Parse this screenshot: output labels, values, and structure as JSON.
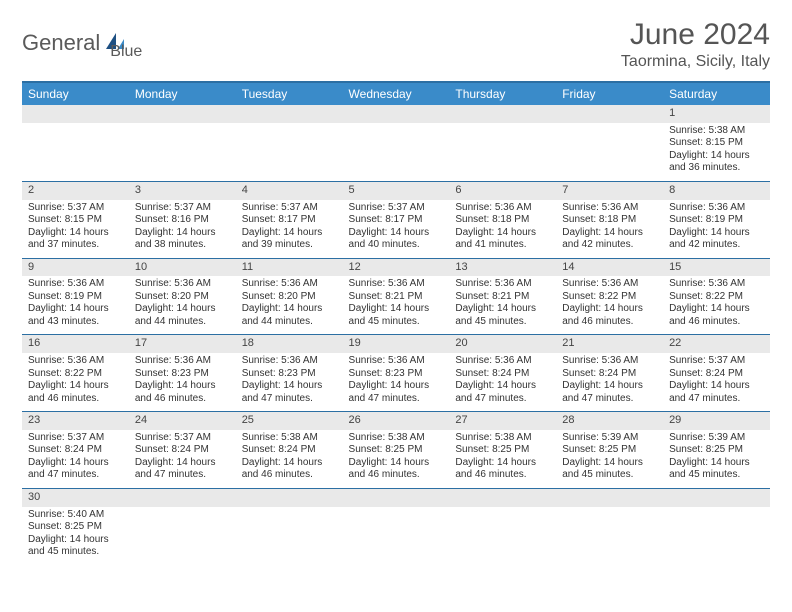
{
  "header": {
    "logo_text_1": "General",
    "logo_text_2": "Blue",
    "title": "June 2024",
    "subtitle": "Taormina, Sicily, Italy"
  },
  "calendar": {
    "header_bg": "#3a8bc9",
    "header_fg": "#ffffff",
    "border_color": "#2c6fa3",
    "daynum_bg": "#e9e9e9",
    "font_size_header": 12,
    "font_size_daynum": 11,
    "font_size_detail": 10,
    "days": [
      "Sunday",
      "Monday",
      "Tuesday",
      "Wednesday",
      "Thursday",
      "Friday",
      "Saturday"
    ],
    "weeks": [
      [
        null,
        null,
        null,
        null,
        null,
        null,
        {
          "n": "1",
          "sr": "Sunrise: 5:38 AM",
          "ss": "Sunset: 8:15 PM",
          "d1": "Daylight: 14 hours",
          "d2": "and 36 minutes."
        }
      ],
      [
        {
          "n": "2",
          "sr": "Sunrise: 5:37 AM",
          "ss": "Sunset: 8:15 PM",
          "d1": "Daylight: 14 hours",
          "d2": "and 37 minutes."
        },
        {
          "n": "3",
          "sr": "Sunrise: 5:37 AM",
          "ss": "Sunset: 8:16 PM",
          "d1": "Daylight: 14 hours",
          "d2": "and 38 minutes."
        },
        {
          "n": "4",
          "sr": "Sunrise: 5:37 AM",
          "ss": "Sunset: 8:17 PM",
          "d1": "Daylight: 14 hours",
          "d2": "and 39 minutes."
        },
        {
          "n": "5",
          "sr": "Sunrise: 5:37 AM",
          "ss": "Sunset: 8:17 PM",
          "d1": "Daylight: 14 hours",
          "d2": "and 40 minutes."
        },
        {
          "n": "6",
          "sr": "Sunrise: 5:36 AM",
          "ss": "Sunset: 8:18 PM",
          "d1": "Daylight: 14 hours",
          "d2": "and 41 minutes."
        },
        {
          "n": "7",
          "sr": "Sunrise: 5:36 AM",
          "ss": "Sunset: 8:18 PM",
          "d1": "Daylight: 14 hours",
          "d2": "and 42 minutes."
        },
        {
          "n": "8",
          "sr": "Sunrise: 5:36 AM",
          "ss": "Sunset: 8:19 PM",
          "d1": "Daylight: 14 hours",
          "d2": "and 42 minutes."
        }
      ],
      [
        {
          "n": "9",
          "sr": "Sunrise: 5:36 AM",
          "ss": "Sunset: 8:19 PM",
          "d1": "Daylight: 14 hours",
          "d2": "and 43 minutes."
        },
        {
          "n": "10",
          "sr": "Sunrise: 5:36 AM",
          "ss": "Sunset: 8:20 PM",
          "d1": "Daylight: 14 hours",
          "d2": "and 44 minutes."
        },
        {
          "n": "11",
          "sr": "Sunrise: 5:36 AM",
          "ss": "Sunset: 8:20 PM",
          "d1": "Daylight: 14 hours",
          "d2": "and 44 minutes."
        },
        {
          "n": "12",
          "sr": "Sunrise: 5:36 AM",
          "ss": "Sunset: 8:21 PM",
          "d1": "Daylight: 14 hours",
          "d2": "and 45 minutes."
        },
        {
          "n": "13",
          "sr": "Sunrise: 5:36 AM",
          "ss": "Sunset: 8:21 PM",
          "d1": "Daylight: 14 hours",
          "d2": "and 45 minutes."
        },
        {
          "n": "14",
          "sr": "Sunrise: 5:36 AM",
          "ss": "Sunset: 8:22 PM",
          "d1": "Daylight: 14 hours",
          "d2": "and 46 minutes."
        },
        {
          "n": "15",
          "sr": "Sunrise: 5:36 AM",
          "ss": "Sunset: 8:22 PM",
          "d1": "Daylight: 14 hours",
          "d2": "and 46 minutes."
        }
      ],
      [
        {
          "n": "16",
          "sr": "Sunrise: 5:36 AM",
          "ss": "Sunset: 8:22 PM",
          "d1": "Daylight: 14 hours",
          "d2": "and 46 minutes."
        },
        {
          "n": "17",
          "sr": "Sunrise: 5:36 AM",
          "ss": "Sunset: 8:23 PM",
          "d1": "Daylight: 14 hours",
          "d2": "and 46 minutes."
        },
        {
          "n": "18",
          "sr": "Sunrise: 5:36 AM",
          "ss": "Sunset: 8:23 PM",
          "d1": "Daylight: 14 hours",
          "d2": "and 47 minutes."
        },
        {
          "n": "19",
          "sr": "Sunrise: 5:36 AM",
          "ss": "Sunset: 8:23 PM",
          "d1": "Daylight: 14 hours",
          "d2": "and 47 minutes."
        },
        {
          "n": "20",
          "sr": "Sunrise: 5:36 AM",
          "ss": "Sunset: 8:24 PM",
          "d1": "Daylight: 14 hours",
          "d2": "and 47 minutes."
        },
        {
          "n": "21",
          "sr": "Sunrise: 5:36 AM",
          "ss": "Sunset: 8:24 PM",
          "d1": "Daylight: 14 hours",
          "d2": "and 47 minutes."
        },
        {
          "n": "22",
          "sr": "Sunrise: 5:37 AM",
          "ss": "Sunset: 8:24 PM",
          "d1": "Daylight: 14 hours",
          "d2": "and 47 minutes."
        }
      ],
      [
        {
          "n": "23",
          "sr": "Sunrise: 5:37 AM",
          "ss": "Sunset: 8:24 PM",
          "d1": "Daylight: 14 hours",
          "d2": "and 47 minutes."
        },
        {
          "n": "24",
          "sr": "Sunrise: 5:37 AM",
          "ss": "Sunset: 8:24 PM",
          "d1": "Daylight: 14 hours",
          "d2": "and 47 minutes."
        },
        {
          "n": "25",
          "sr": "Sunrise: 5:38 AM",
          "ss": "Sunset: 8:24 PM",
          "d1": "Daylight: 14 hours",
          "d2": "and 46 minutes."
        },
        {
          "n": "26",
          "sr": "Sunrise: 5:38 AM",
          "ss": "Sunset: 8:25 PM",
          "d1": "Daylight: 14 hours",
          "d2": "and 46 minutes."
        },
        {
          "n": "27",
          "sr": "Sunrise: 5:38 AM",
          "ss": "Sunset: 8:25 PM",
          "d1": "Daylight: 14 hours",
          "d2": "and 46 minutes."
        },
        {
          "n": "28",
          "sr": "Sunrise: 5:39 AM",
          "ss": "Sunset: 8:25 PM",
          "d1": "Daylight: 14 hours",
          "d2": "and 45 minutes."
        },
        {
          "n": "29",
          "sr": "Sunrise: 5:39 AM",
          "ss": "Sunset: 8:25 PM",
          "d1": "Daylight: 14 hours",
          "d2": "and 45 minutes."
        }
      ],
      [
        {
          "n": "30",
          "sr": "Sunrise: 5:40 AM",
          "ss": "Sunset: 8:25 PM",
          "d1": "Daylight: 14 hours",
          "d2": "and 45 minutes."
        },
        null,
        null,
        null,
        null,
        null,
        null
      ]
    ]
  }
}
